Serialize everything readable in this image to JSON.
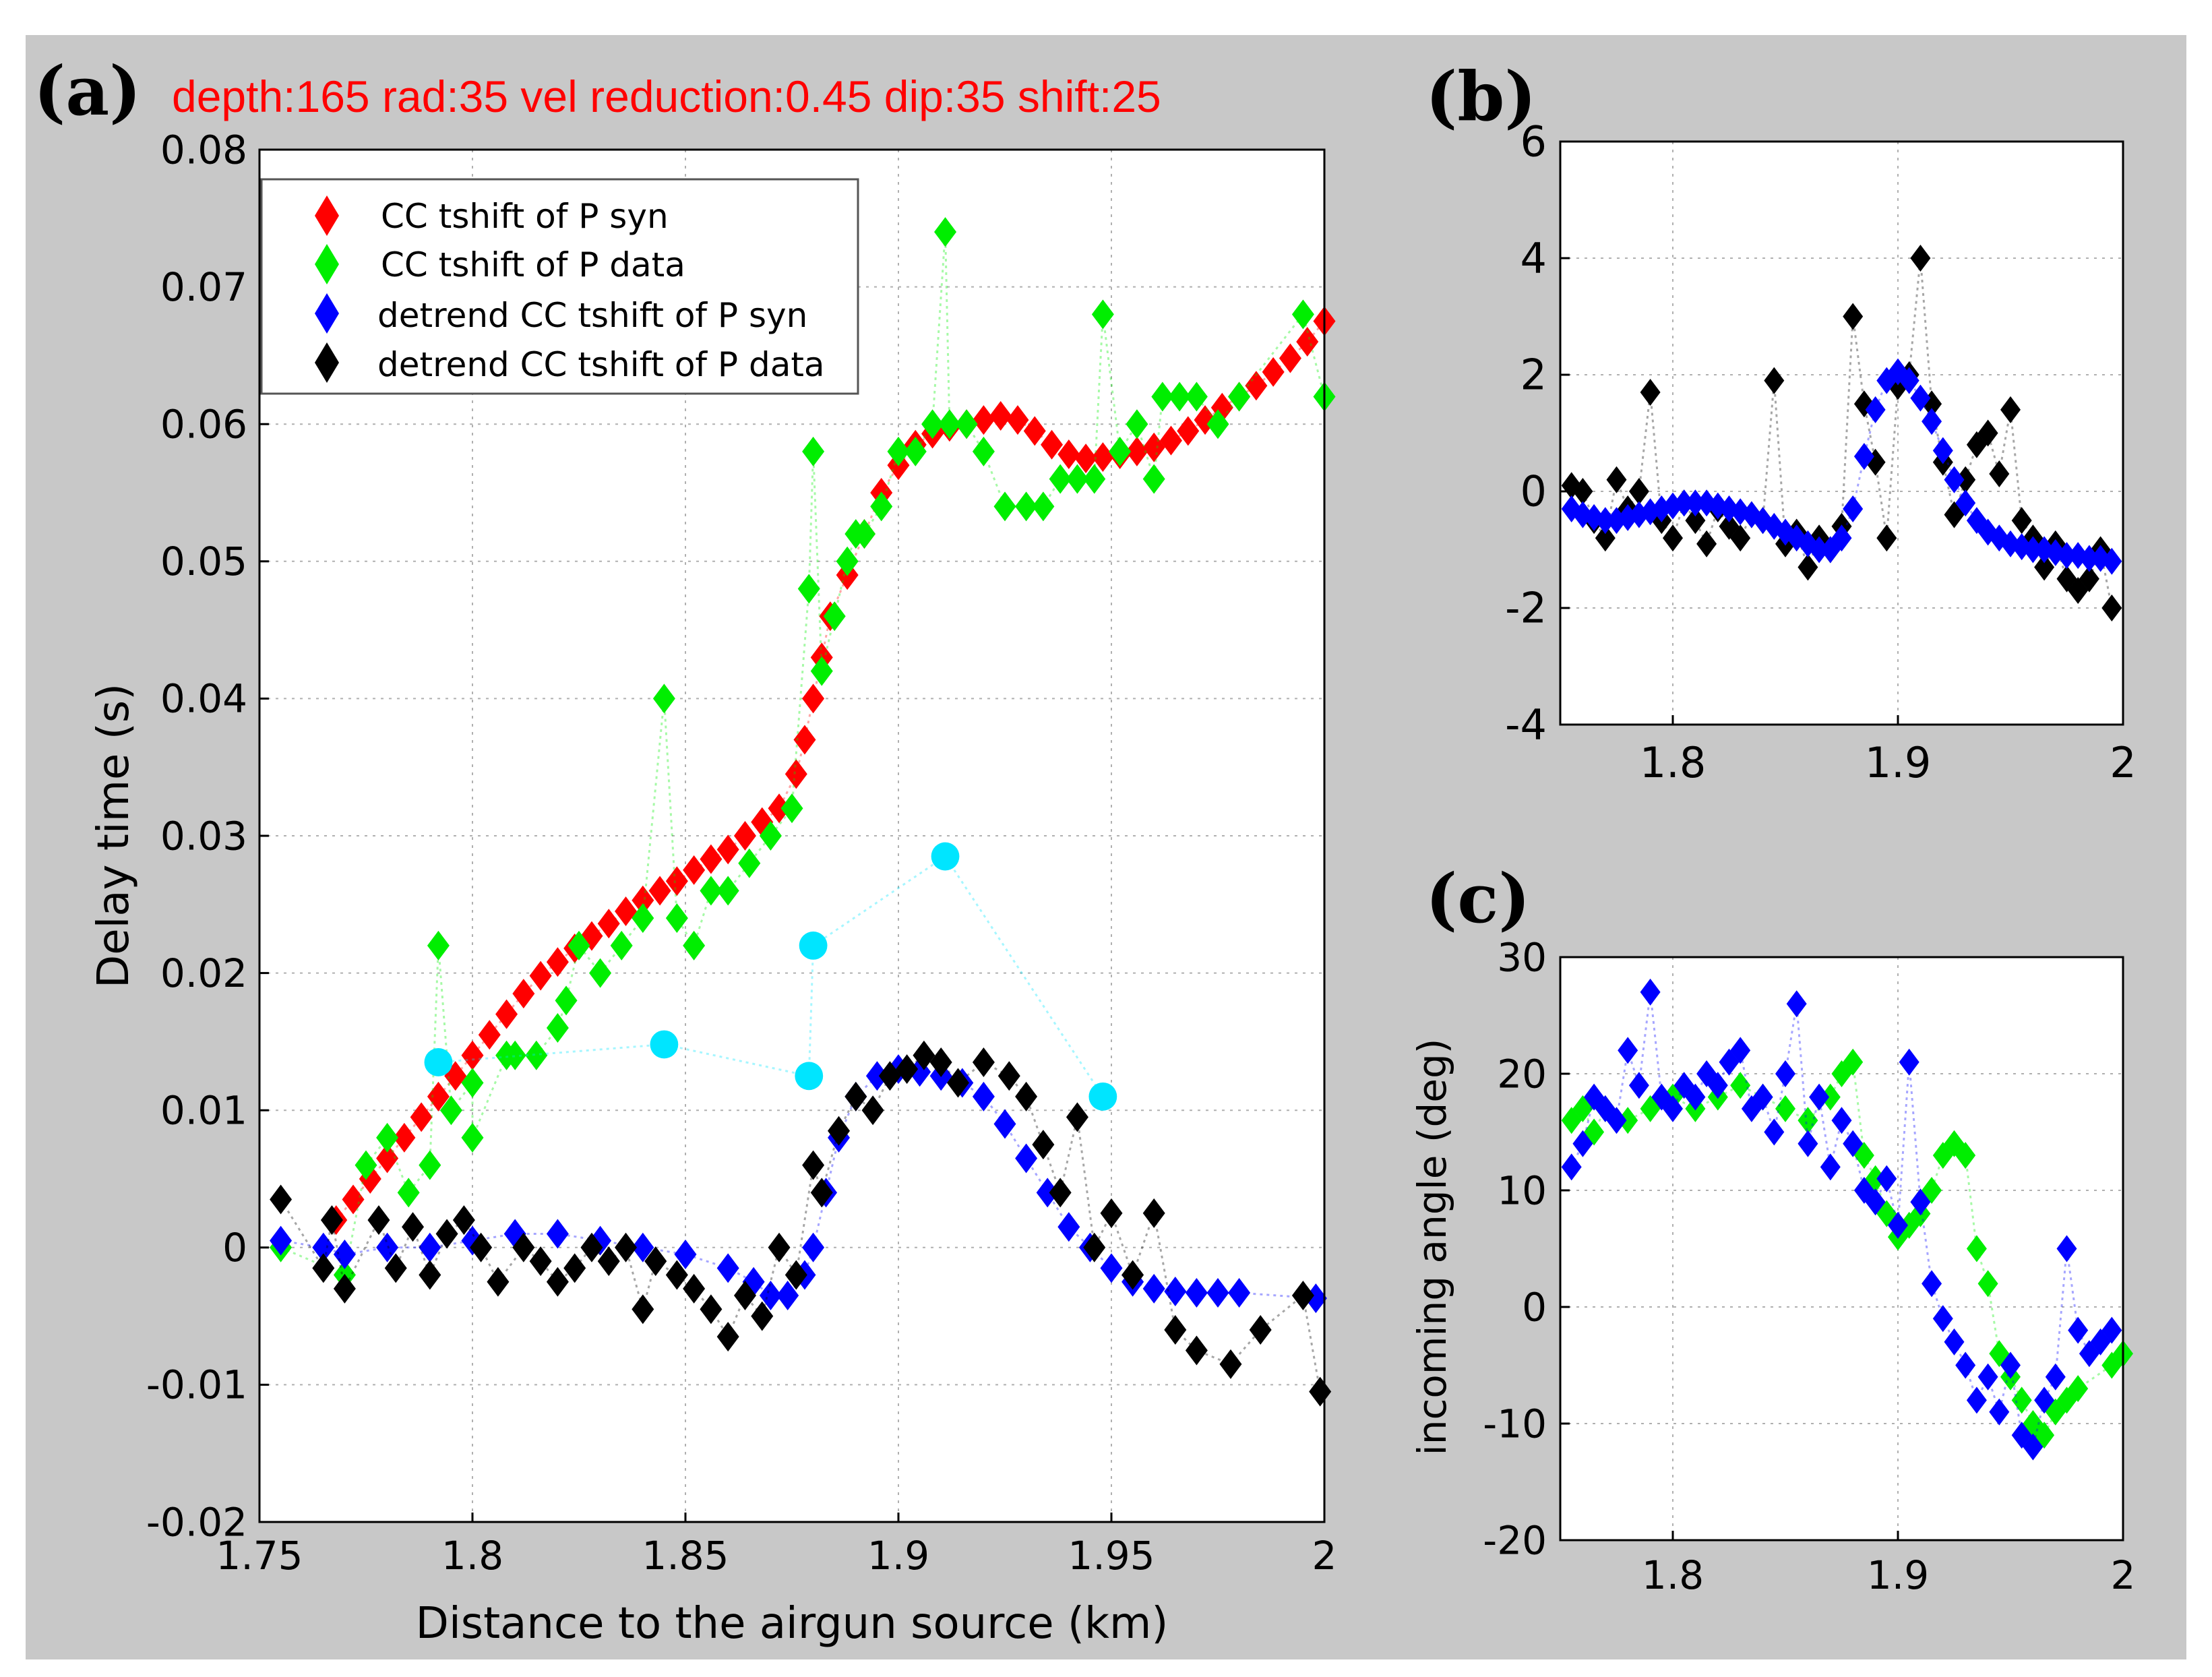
{
  "colors": {
    "figure_bg": "#c8c8c8",
    "axes_bg": "#ffffff",
    "syn_red": "#ff0000",
    "data_green": "#00ee00",
    "detrend_syn_blue": "#0000ff",
    "detrend_data_black": "#000000",
    "cyan": "#00e5ff",
    "grid": "#b0b0b0",
    "annotation_red": "#ff0000"
  },
  "chart_data": [
    {
      "id": "a",
      "type": "scatter",
      "panel_label": "(a)",
      "annotation": "depth:165 rad:35 vel reduction:0.45 dip:35 shift:25",
      "xlabel": "Distance to the airgun source (km)",
      "ylabel": "Delay time (s)",
      "xlim": [
        1.75,
        2.0
      ],
      "ylim": [
        -0.02,
        0.08
      ],
      "xticks": [
        "1.75",
        "1.8",
        "1.85",
        "1.9",
        "1.95",
        "2"
      ],
      "yticks": [
        "-0.02",
        "-0.01",
        "0",
        "0.01",
        "0.02",
        "0.03",
        "0.04",
        "0.05",
        "0.06",
        "0.07",
        "0.08"
      ],
      "grid": true,
      "legend_position": "top-left",
      "legend": [
        {
          "label": "CC tshift of P syn",
          "color": "#ff0000"
        },
        {
          "label": "CC tshift of P data",
          "color": "#00ee00"
        },
        {
          "label": "detrend CC tshift of P syn",
          "color": "#0000ff"
        },
        {
          "label": "detrend CC tshift of P data",
          "color": "#000000"
        }
      ],
      "series": [
        {
          "name": "CC tshift of P syn",
          "color": "#ff0000",
          "x": [
            1.768,
            1.772,
            1.776,
            1.78,
            1.784,
            1.788,
            1.792,
            1.796,
            1.8,
            1.804,
            1.808,
            1.812,
            1.816,
            1.82,
            1.824,
            1.828,
            1.832,
            1.836,
            1.84,
            1.844,
            1.848,
            1.852,
            1.856,
            1.86,
            1.864,
            1.868,
            1.872,
            1.876,
            1.878,
            1.88,
            1.882,
            1.884,
            1.888,
            1.892,
            1.896,
            1.9,
            1.904,
            1.908,
            1.912,
            1.916,
            1.92,
            1.924,
            1.928,
            1.932,
            1.936,
            1.94,
            1.944,
            1.948,
            1.952,
            1.956,
            1.96,
            1.964,
            1.968,
            1.972,
            1.976,
            1.98,
            1.984,
            1.988,
            1.992,
            1.996,
            2.0
          ],
          "y": [
            0.002,
            0.0035,
            0.005,
            0.0065,
            0.008,
            0.0095,
            0.011,
            0.0125,
            0.014,
            0.0155,
            0.017,
            0.0185,
            0.0198,
            0.0208,
            0.0218,
            0.0227,
            0.0236,
            0.0245,
            0.0253,
            0.026,
            0.0267,
            0.0275,
            0.0283,
            0.029,
            0.03,
            0.031,
            0.032,
            0.0345,
            0.037,
            0.04,
            0.043,
            0.046,
            0.049,
            0.052,
            0.055,
            0.057,
            0.0585,
            0.0593,
            0.0598,
            0.06,
            0.0603,
            0.0606,
            0.0603,
            0.0595,
            0.0585,
            0.0578,
            0.0575,
            0.0576,
            0.0578,
            0.058,
            0.0583,
            0.0588,
            0.0595,
            0.0603,
            0.0612,
            0.062,
            0.0628,
            0.0638,
            0.0648,
            0.066,
            0.0675
          ]
        },
        {
          "name": "CC tshift of P data",
          "color": "#00ee00",
          "x": [
            1.755,
            1.77,
            1.775,
            1.78,
            1.785,
            1.79,
            1.792,
            1.795,
            1.8,
            1.8,
            1.808,
            1.81,
            1.815,
            1.82,
            1.822,
            1.825,
            1.83,
            1.835,
            1.84,
            1.845,
            1.848,
            1.852,
            1.856,
            1.86,
            1.865,
            1.87,
            1.875,
            1.879,
            1.88,
            1.882,
            1.885,
            1.888,
            1.89,
            1.892,
            1.896,
            1.9,
            1.904,
            1.908,
            1.911,
            1.912,
            1.916,
            1.92,
            1.925,
            1.93,
            1.934,
            1.938,
            1.942,
            1.946,
            1.948,
            1.952,
            1.956,
            1.96,
            1.962,
            1.966,
            1.97,
            1.975,
            1.98,
            1.995,
            2.0
          ],
          "y": [
            0.0,
            -0.002,
            0.006,
            0.008,
            0.004,
            0.006,
            0.022,
            0.01,
            0.012,
            0.008,
            0.014,
            0.014,
            0.014,
            0.016,
            0.018,
            0.022,
            0.02,
            0.022,
            0.024,
            0.04,
            0.024,
            0.022,
            0.026,
            0.026,
            0.028,
            0.03,
            0.032,
            0.048,
            0.058,
            0.042,
            0.046,
            0.05,
            0.052,
            0.052,
            0.054,
            0.058,
            0.058,
            0.06,
            0.074,
            0.06,
            0.06,
            0.058,
            0.054,
            0.054,
            0.054,
            0.056,
            0.056,
            0.056,
            0.068,
            0.058,
            0.06,
            0.056,
            0.062,
            0.062,
            0.062,
            0.06,
            0.062,
            0.068,
            0.062
          ]
        },
        {
          "name": "detrend CC tshift of P syn",
          "color": "#0000ff",
          "x": [
            1.755,
            1.765,
            1.77,
            1.78,
            1.79,
            1.8,
            1.81,
            1.82,
            1.83,
            1.84,
            1.85,
            1.86,
            1.866,
            1.87,
            1.874,
            1.878,
            1.88,
            1.883,
            1.886,
            1.89,
            1.895,
            1.9,
            1.905,
            1.91,
            1.915,
            1.92,
            1.925,
            1.93,
            1.935,
            1.94,
            1.945,
            1.95,
            1.955,
            1.96,
            1.965,
            1.97,
            1.975,
            1.98,
            1.998
          ],
          "y": [
            0.0005,
            0.0,
            -0.0005,
            0.0,
            0.0,
            0.0005,
            0.001,
            0.001,
            0.0005,
            0.0,
            -0.0005,
            -0.0015,
            -0.0025,
            -0.0035,
            -0.0035,
            -0.002,
            0.0,
            0.004,
            0.008,
            0.011,
            0.0125,
            0.013,
            0.0128,
            0.0125,
            0.012,
            0.011,
            0.009,
            0.0065,
            0.004,
            0.0015,
            0.0,
            -0.0015,
            -0.0025,
            -0.003,
            -0.0032,
            -0.0033,
            -0.0033,
            -0.0033,
            -0.0037
          ]
        },
        {
          "name": "detrend CC tshift of P data",
          "color": "#000000",
          "x": [
            1.755,
            1.765,
            1.767,
            1.77,
            1.778,
            1.782,
            1.786,
            1.79,
            1.794,
            1.798,
            1.802,
            1.806,
            1.812,
            1.816,
            1.82,
            1.824,
            1.828,
            1.832,
            1.836,
            1.84,
            1.843,
            1.848,
            1.852,
            1.856,
            1.86,
            1.864,
            1.868,
            1.872,
            1.876,
            1.88,
            1.882,
            1.886,
            1.89,
            1.894,
            1.898,
            1.902,
            1.906,
            1.91,
            1.914,
            1.92,
            1.926,
            1.93,
            1.934,
            1.938,
            1.942,
            1.946,
            1.95,
            1.955,
            1.96,
            1.965,
            1.97,
            1.978,
            1.985,
            1.995,
            1.999
          ],
          "y": [
            0.0035,
            -0.0015,
            0.002,
            -0.003,
            0.002,
            -0.0015,
            0.0015,
            -0.002,
            0.001,
            0.002,
            0.0,
            -0.0025,
            0.0,
            -0.001,
            -0.0025,
            -0.0015,
            0.0,
            -0.001,
            0.0,
            -0.0045,
            -0.001,
            -0.002,
            -0.003,
            -0.0045,
            -0.0065,
            -0.0035,
            -0.005,
            0.0,
            -0.002,
            0.006,
            0.004,
            0.0085,
            0.011,
            0.01,
            0.0125,
            0.013,
            0.014,
            0.0135,
            0.012,
            0.0135,
            0.0125,
            0.011,
            0.0075,
            0.004,
            0.0095,
            0.0,
            0.0025,
            -0.002,
            0.0025,
            -0.006,
            -0.0075,
            -0.0085,
            -0.006,
            -0.0035,
            -0.0105
          ]
        },
        {
          "name": "",
          "color": "#00e5ff",
          "x": [
            1.792,
            1.845,
            1.879,
            1.88,
            1.911,
            1.948
          ],
          "y": [
            0.0135,
            0.0148,
            0.0125,
            0.022,
            0.0285,
            0.011
          ]
        }
      ]
    },
    {
      "id": "b",
      "type": "scatter",
      "panel_label": "(b)",
      "xlabel": "",
      "ylabel": "",
      "xlim": [
        1.75,
        2.0
      ],
      "ylim": [
        -4,
        6
      ],
      "xticks": [
        "1.8",
        "1.9",
        "2"
      ],
      "yticks": [
        "-4",
        "-2",
        "0",
        "2",
        "4",
        "6"
      ],
      "grid": true,
      "series": [
        {
          "name": "",
          "color": "#000000",
          "x": [
            1.755,
            1.76,
            1.765,
            1.77,
            1.775,
            1.78,
            1.785,
            1.79,
            1.795,
            1.8,
            1.805,
            1.81,
            1.815,
            1.82,
            1.825,
            1.83,
            1.835,
            1.84,
            1.845,
            1.85,
            1.855,
            1.86,
            1.865,
            1.87,
            1.875,
            1.88,
            1.885,
            1.89,
            1.895,
            1.9,
            1.905,
            1.91,
            1.915,
            1.92,
            1.925,
            1.93,
            1.935,
            1.94,
            1.945,
            1.95,
            1.955,
            1.96,
            1.965,
            1.97,
            1.975,
            1.98,
            1.985,
            1.99,
            1.995
          ],
          "y": [
            0.1,
            0.0,
            -0.5,
            -0.8,
            0.2,
            -0.3,
            0.0,
            1.7,
            -0.5,
            -0.8,
            -0.2,
            -0.5,
            -0.9,
            -0.3,
            -0.6,
            -0.8,
            -0.4,
            -0.5,
            1.9,
            -0.9,
            -0.7,
            -1.3,
            -0.8,
            -1.0,
            -0.6,
            3.0,
            1.5,
            0.5,
            -0.8,
            1.8,
            2.0,
            4.0,
            1.5,
            0.5,
            -0.4,
            0.2,
            0.8,
            1.0,
            0.3,
            1.4,
            -0.5,
            -0.8,
            -1.3,
            -0.9,
            -1.5,
            -1.7,
            -1.5,
            -1.0,
            -2.0
          ]
        },
        {
          "name": "",
          "color": "#0000ff",
          "x": [
            1.755,
            1.76,
            1.765,
            1.77,
            1.775,
            1.78,
            1.785,
            1.79,
            1.795,
            1.8,
            1.805,
            1.81,
            1.815,
            1.82,
            1.825,
            1.83,
            1.835,
            1.84,
            1.845,
            1.85,
            1.855,
            1.86,
            1.865,
            1.87,
            1.875,
            1.88,
            1.885,
            1.89,
            1.895,
            1.9,
            1.905,
            1.91,
            1.915,
            1.92,
            1.925,
            1.93,
            1.935,
            1.94,
            1.945,
            1.95,
            1.955,
            1.96,
            1.965,
            1.97,
            1.975,
            1.98,
            1.985,
            1.99,
            1.995
          ],
          "y": [
            -0.3,
            -0.4,
            -0.45,
            -0.5,
            -0.5,
            -0.45,
            -0.4,
            -0.35,
            -0.3,
            -0.25,
            -0.2,
            -0.2,
            -0.2,
            -0.25,
            -0.3,
            -0.35,
            -0.4,
            -0.5,
            -0.6,
            -0.7,
            -0.8,
            -0.9,
            -1.0,
            -1.0,
            -0.8,
            -0.3,
            0.6,
            1.4,
            1.9,
            2.05,
            1.9,
            1.6,
            1.2,
            0.7,
            0.2,
            -0.2,
            -0.5,
            -0.7,
            -0.8,
            -0.9,
            -0.95,
            -1.0,
            -1.0,
            -1.05,
            -1.1,
            -1.1,
            -1.15,
            -1.15,
            -1.2
          ]
        }
      ]
    },
    {
      "id": "c",
      "type": "scatter",
      "panel_label": "(c)",
      "xlabel": "",
      "ylabel": "incoming angle (deg)",
      "xlim": [
        1.75,
        2.0
      ],
      "ylim": [
        -20,
        30
      ],
      "xticks": [
        "1.8",
        "1.9",
        "2"
      ],
      "yticks": [
        "-20",
        "-10",
        "0",
        "10",
        "20",
        "30"
      ],
      "grid": true,
      "series": [
        {
          "name": "",
          "color": "#00ee00",
          "x": [
            1.755,
            1.76,
            1.765,
            1.77,
            1.78,
            1.79,
            1.8,
            1.81,
            1.82,
            1.83,
            1.84,
            1.85,
            1.86,
            1.87,
            1.875,
            1.88,
            1.885,
            1.89,
            1.895,
            1.9,
            1.905,
            1.91,
            1.915,
            1.92,
            1.925,
            1.93,
            1.935,
            1.94,
            1.945,
            1.95,
            1.955,
            1.96,
            1.965,
            1.97,
            1.975,
            1.98,
            1.995,
            2.0
          ],
          "y": [
            16,
            17,
            15,
            17,
            16,
            17,
            18,
            17,
            18,
            19,
            18,
            17,
            16,
            18,
            20,
            21,
            13,
            11,
            8,
            6,
            7,
            8,
            10,
            13,
            14,
            13,
            5,
            2,
            -4,
            -6,
            -8,
            -10,
            -11,
            -9,
            -8,
            -7,
            -5,
            -4
          ]
        },
        {
          "name": "",
          "color": "#0000ff",
          "x": [
            1.755,
            1.76,
            1.765,
            1.77,
            1.775,
            1.78,
            1.785,
            1.79,
            1.795,
            1.8,
            1.805,
            1.81,
            1.815,
            1.82,
            1.825,
            1.83,
            1.835,
            1.84,
            1.845,
            1.85,
            1.855,
            1.86,
            1.865,
            1.87,
            1.875,
            1.88,
            1.885,
            1.89,
            1.895,
            1.9,
            1.905,
            1.91,
            1.915,
            1.92,
            1.925,
            1.93,
            1.935,
            1.94,
            1.945,
            1.95,
            1.955,
            1.96,
            1.965,
            1.97,
            1.975,
            1.98,
            1.985,
            1.99,
            1.995
          ],
          "y": [
            12,
            14,
            18,
            17,
            16,
            22,
            19,
            27,
            18,
            17,
            19,
            18,
            20,
            19,
            21,
            22,
            17,
            18,
            15,
            20,
            26,
            14,
            18,
            12,
            16,
            14,
            10,
            9,
            11,
            7,
            21,
            9,
            2,
            -1,
            -3,
            -5,
            -8,
            -6,
            -9,
            -5,
            -11,
            -12,
            -8,
            -6,
            5,
            -2,
            -4,
            -3,
            -2
          ]
        }
      ]
    }
  ]
}
